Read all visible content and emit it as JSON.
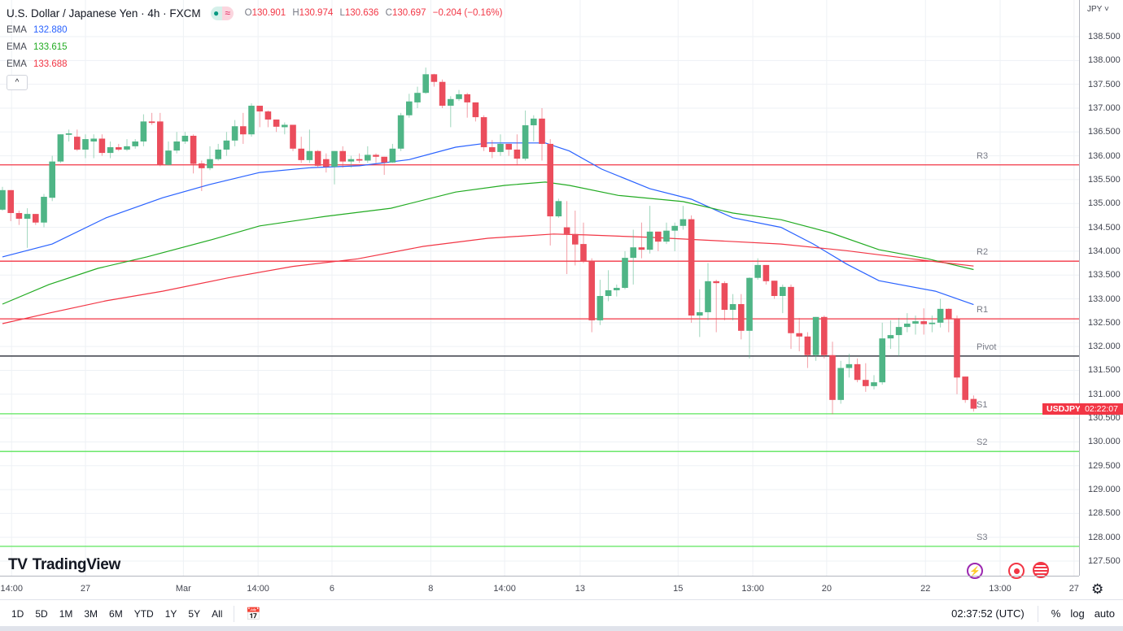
{
  "header": {
    "title": "U.S. Dollar / Japanese Yen · 4h · FXCM",
    "ohlc": {
      "o_label": "O",
      "o": "130.901",
      "h_label": "H",
      "h": "130.974",
      "l_label": "L",
      "l": "130.636",
      "c_label": "C",
      "c": "130.697",
      "change": "−0.204 (−0.16%)"
    },
    "emas": [
      {
        "label": "EMA",
        "value": "132.880",
        "color": "#2962ff"
      },
      {
        "label": "EMA",
        "value": "133.615",
        "color": "#22ab22"
      },
      {
        "label": "EMA",
        "value": "133.688",
        "color": "#f23645"
      }
    ],
    "collapse_icon": "chevron-up-icon"
  },
  "currency_label": "JPY ˅",
  "logo_text": "TradingView",
  "price_tag": {
    "symbol": "USDJPY",
    "countdown": "02:22:07"
  },
  "bottom": {
    "ranges": [
      "1D",
      "5D",
      "1M",
      "3M",
      "6M",
      "YTD",
      "1Y",
      "5Y",
      "All"
    ],
    "time": "02:37:52 (UTC)",
    "percent": "%",
    "log": "log",
    "auto": "auto"
  },
  "colors": {
    "up": "#4fb586",
    "down": "#eb4d5c",
    "resistance": "#f23645",
    "pivot": "#131722",
    "support": "#5ce65c",
    "grid": "#eef1f5"
  },
  "chart_data": {
    "type": "candlestick",
    "title": "U.S. Dollar / Japanese Yen · 4h · FXCM",
    "ylim": [
      127.2,
      138.75
    ],
    "y_ticks": [
      "138.500",
      "138.000",
      "137.500",
      "137.000",
      "136.500",
      "136.000",
      "135.500",
      "135.000",
      "134.500",
      "134.000",
      "133.500",
      "133.000",
      "132.500",
      "132.000",
      "131.500",
      "131.000",
      "130.500",
      "130.000",
      "129.500",
      "129.000",
      "128.500",
      "128.000",
      "127.500"
    ],
    "x_ticks": [
      {
        "i": 1.1,
        "label": "14:00"
      },
      {
        "i": 10,
        "label": "27"
      },
      {
        "i": 21.8,
        "label": "Mar"
      },
      {
        "i": 30.8,
        "label": "14:00"
      },
      {
        "i": 39.7,
        "label": "6"
      },
      {
        "i": 51.6,
        "label": "8"
      },
      {
        "i": 60.5,
        "label": "14:00"
      },
      {
        "i": 69.6,
        "label": "13"
      },
      {
        "i": 81.4,
        "label": "15"
      },
      {
        "i": 90.4,
        "label": "13:00"
      },
      {
        "i": 99.3,
        "label": "20"
      },
      {
        "i": 111.2,
        "label": "22"
      },
      {
        "i": 120.2,
        "label": "13:00"
      },
      {
        "i": 129.1,
        "label": "27"
      }
    ],
    "levels": [
      {
        "name": "R3",
        "value": 135.81,
        "kind": "resistance"
      },
      {
        "name": "R2",
        "value": 133.79,
        "kind": "resistance"
      },
      {
        "name": "R1",
        "value": 132.58,
        "kind": "resistance"
      },
      {
        "name": "Pivot",
        "value": 131.8,
        "kind": "pivot"
      },
      {
        "name": "S1",
        "value": 130.59,
        "kind": "support"
      },
      {
        "name": "S2",
        "value": 129.8,
        "kind": "support"
      },
      {
        "name": "S3",
        "value": 127.81,
        "kind": "support"
      }
    ],
    "ohlc": [
      [
        134.87,
        135.35,
        134.85,
        135.28
      ],
      [
        135.28,
        135.28,
        134.63,
        134.8
      ],
      [
        134.8,
        134.85,
        134.55,
        134.68
      ],
      [
        134.68,
        134.9,
        134.07,
        134.78
      ],
      [
        134.78,
        134.78,
        134.55,
        134.6
      ],
      [
        134.6,
        135.2,
        134.5,
        135.14
      ],
      [
        135.12,
        136.0,
        135.05,
        135.88
      ],
      [
        135.88,
        136.45,
        135.85,
        136.45
      ],
      [
        136.44,
        136.55,
        136.3,
        136.47
      ],
      [
        136.4,
        136.55,
        136.1,
        136.13
      ],
      [
        136.13,
        136.45,
        135.95,
        136.35
      ],
      [
        136.3,
        136.45,
        135.95,
        136.36
      ],
      [
        136.36,
        136.45,
        136.0,
        136.06
      ],
      [
        136.06,
        136.3,
        135.95,
        136.18
      ],
      [
        136.18,
        136.25,
        136.1,
        136.13
      ],
      [
        136.13,
        136.35,
        136.1,
        136.2
      ],
      [
        136.2,
        136.35,
        136.15,
        136.3
      ],
      [
        136.3,
        136.87,
        136.2,
        136.72
      ],
      [
        136.72,
        136.9,
        136.65,
        136.69
      ],
      [
        136.72,
        136.9,
        135.78,
        135.81
      ],
      [
        135.81,
        136.3,
        135.8,
        136.11
      ],
      [
        136.11,
        136.5,
        136.05,
        136.3
      ],
      [
        136.3,
        136.5,
        136.25,
        136.42
      ],
      [
        136.42,
        136.45,
        135.63,
        135.83
      ],
      [
        135.84,
        135.9,
        135.26,
        135.74
      ],
      [
        135.74,
        136.2,
        135.7,
        135.93
      ],
      [
        135.93,
        136.25,
        135.9,
        136.13
      ],
      [
        136.13,
        136.5,
        136.0,
        136.32
      ],
      [
        136.32,
        136.75,
        136.2,
        136.62
      ],
      [
        136.62,
        136.9,
        136.25,
        136.45
      ],
      [
        136.45,
        137.1,
        136.4,
        137.05
      ],
      [
        137.05,
        137.05,
        136.6,
        136.93
      ],
      [
        136.93,
        136.95,
        136.6,
        136.76
      ],
      [
        136.76,
        136.76,
        136.5,
        136.61
      ],
      [
        136.6,
        136.7,
        136.45,
        136.65
      ],
      [
        136.65,
        136.65,
        136.1,
        136.15
      ],
      [
        136.15,
        136.4,
        135.85,
        135.91
      ],
      [
        135.91,
        136.55,
        135.85,
        136.1
      ],
      [
        136.1,
        136.12,
        135.75,
        135.79
      ],
      [
        135.93,
        136.05,
        135.65,
        135.77
      ],
      [
        135.77,
        136.1,
        135.4,
        136.1
      ],
      [
        136.1,
        136.2,
        135.75,
        135.88
      ],
      [
        135.88,
        136.0,
        135.75,
        135.93
      ],
      [
        135.93,
        136.05,
        135.85,
        135.9
      ],
      [
        135.9,
        136.2,
        135.85,
        136.02
      ],
      [
        136.02,
        136.05,
        135.85,
        135.98
      ],
      [
        135.98,
        135.98,
        135.6,
        135.86
      ],
      [
        135.86,
        136.25,
        135.85,
        136.15
      ],
      [
        136.15,
        136.9,
        136.1,
        136.85
      ],
      [
        136.85,
        137.3,
        136.8,
        137.14
      ],
      [
        137.12,
        137.45,
        137.0,
        137.32
      ],
      [
        137.32,
        137.85,
        137.3,
        137.71
      ],
      [
        137.71,
        137.72,
        137.45,
        137.55
      ],
      [
        137.55,
        137.6,
        137.0,
        137.05
      ],
      [
        137.05,
        137.25,
        136.6,
        137.19
      ],
      [
        137.19,
        137.38,
        137.15,
        137.29
      ],
      [
        137.29,
        137.32,
        136.8,
        137.12
      ],
      [
        137.12,
        137.12,
        136.72,
        136.81
      ],
      [
        136.81,
        136.85,
        136.1,
        136.18
      ],
      [
        136.18,
        136.33,
        135.95,
        136.08
      ],
      [
        136.08,
        136.45,
        136.0,
        136.25
      ],
      [
        136.25,
        136.25,
        136.0,
        136.13
      ],
      [
        136.13,
        136.45,
        135.8,
        135.94
      ],
      [
        135.94,
        136.95,
        135.9,
        136.64
      ],
      [
        136.64,
        136.85,
        136.3,
        136.78
      ],
      [
        136.78,
        137.0,
        135.9,
        136.25
      ],
      [
        136.25,
        136.35,
        134.12,
        134.73
      ],
      [
        134.73,
        135.1,
        134.7,
        135.05
      ],
      [
        134.5,
        135.05,
        133.52,
        134.36
      ],
      [
        134.36,
        134.85,
        133.7,
        134.14
      ],
      [
        134.15,
        134.6,
        133.75,
        133.79
      ],
      [
        133.79,
        133.85,
        132.3,
        132.55
      ],
      [
        132.55,
        133.4,
        132.45,
        133.06
      ],
      [
        133.06,
        133.6,
        132.95,
        133.18
      ],
      [
        133.18,
        133.3,
        133.05,
        133.23
      ],
      [
        133.23,
        134.0,
        133.2,
        133.86
      ],
      [
        133.86,
        134.45,
        133.3,
        134.08
      ],
      [
        134.08,
        134.6,
        133.85,
        134.03
      ],
      [
        134.03,
        134.95,
        133.95,
        134.41
      ],
      [
        134.41,
        134.41,
        134.0,
        134.2
      ],
      [
        134.2,
        134.6,
        134.15,
        134.43
      ],
      [
        134.43,
        134.6,
        134.0,
        134.53
      ],
      [
        134.53,
        134.95,
        134.45,
        134.67
      ],
      [
        134.67,
        134.75,
        132.5,
        132.65
      ],
      [
        132.65,
        133.2,
        132.2,
        132.72
      ],
      [
        132.72,
        133.75,
        132.55,
        133.37
      ],
      [
        133.37,
        133.4,
        132.3,
        133.33
      ],
      [
        133.33,
        133.37,
        132.55,
        132.77
      ],
      [
        132.77,
        133.1,
        132.55,
        132.89
      ],
      [
        132.89,
        133.1,
        132.15,
        132.33
      ],
      [
        132.33,
        133.45,
        131.75,
        133.44
      ],
      [
        133.44,
        133.85,
        133.4,
        133.71
      ],
      [
        133.71,
        133.71,
        133.3,
        133.37
      ],
      [
        133.38,
        133.38,
        133.0,
        133.06
      ],
      [
        133.06,
        133.3,
        132.7,
        133.25
      ],
      [
        133.25,
        133.3,
        131.95,
        132.28
      ],
      [
        132.28,
        132.6,
        131.9,
        132.21
      ],
      [
        132.21,
        132.3,
        131.55,
        131.82
      ],
      [
        131.82,
        132.62,
        131.7,
        132.62
      ],
      [
        132.62,
        132.65,
        131.75,
        131.82
      ],
      [
        131.82,
        132.1,
        130.58,
        130.88
      ],
      [
        130.88,
        131.7,
        130.8,
        131.55
      ],
      [
        131.55,
        131.85,
        131.35,
        131.63
      ],
      [
        131.63,
        131.75,
        131.25,
        131.3
      ],
      [
        131.3,
        131.65,
        131.05,
        131.17
      ],
      [
        131.17,
        131.4,
        131.1,
        131.25
      ],
      [
        131.25,
        132.5,
        131.2,
        132.17
      ],
      [
        132.17,
        132.55,
        131.95,
        132.24
      ],
      [
        132.24,
        132.6,
        131.8,
        132.41
      ],
      [
        132.41,
        132.7,
        132.3,
        132.48
      ],
      [
        132.48,
        132.65,
        132.25,
        132.53
      ],
      [
        132.53,
        132.8,
        132.25,
        132.47
      ],
      [
        132.47,
        132.65,
        132.3,
        132.5
      ],
      [
        132.5,
        133.0,
        132.4,
        132.79
      ],
      [
        132.79,
        132.8,
        132.3,
        132.58
      ],
      [
        132.58,
        132.65,
        131.0,
        131.35
      ],
      [
        131.37,
        131.37,
        130.82,
        130.88
      ],
      [
        130.901,
        130.974,
        130.636,
        130.697
      ]
    ],
    "series": [
      {
        "name": "EMA",
        "color": "#2962ff",
        "points": [
          [
            0,
            133.88
          ],
          [
            6,
            134.15
          ],
          [
            12.5,
            134.7
          ],
          [
            19.3,
            135.12
          ],
          [
            25,
            135.4
          ],
          [
            31,
            135.65
          ],
          [
            37,
            135.75
          ],
          [
            43,
            135.79
          ],
          [
            49,
            135.92
          ],
          [
            54.6,
            136.18
          ],
          [
            58.5,
            136.27
          ],
          [
            65.4,
            136.27
          ],
          [
            68.3,
            136.1
          ],
          [
            72.2,
            135.72
          ],
          [
            78,
            135.31
          ],
          [
            83,
            135.09
          ],
          [
            88,
            134.7
          ],
          [
            93.8,
            134.5
          ],
          [
            97.7,
            134.15
          ],
          [
            101.7,
            133.73
          ],
          [
            105.6,
            133.38
          ],
          [
            112.4,
            133.16
          ],
          [
            117,
            132.88
          ]
        ]
      },
      {
        "name": "EMA",
        "color": "#22ab22",
        "points": [
          [
            0,
            132.89
          ],
          [
            5.6,
            133.3
          ],
          [
            11.5,
            133.64
          ],
          [
            17.4,
            133.88
          ],
          [
            25.2,
            134.24
          ],
          [
            31,
            134.53
          ],
          [
            38.9,
            134.73
          ],
          [
            46.8,
            134.9
          ],
          [
            54.6,
            135.24
          ],
          [
            60.5,
            135.38
          ],
          [
            65.4,
            135.45
          ],
          [
            68.3,
            135.38
          ],
          [
            74.2,
            135.17
          ],
          [
            82,
            135.04
          ],
          [
            88,
            134.8
          ],
          [
            93.8,
            134.66
          ],
          [
            99.7,
            134.39
          ],
          [
            105.6,
            134.03
          ],
          [
            111.5,
            133.84
          ],
          [
            117,
            133.615
          ]
        ]
      },
      {
        "name": "EMA",
        "color": "#f23645",
        "points": [
          [
            0,
            132.48
          ],
          [
            5.6,
            132.7
          ],
          [
            12.5,
            132.96
          ],
          [
            19.3,
            133.16
          ],
          [
            27.2,
            133.44
          ],
          [
            35,
            133.68
          ],
          [
            42.8,
            133.84
          ],
          [
            50.7,
            134.1
          ],
          [
            58.5,
            134.27
          ],
          [
            66.4,
            134.36
          ],
          [
            70.3,
            134.34
          ],
          [
            78.1,
            134.29
          ],
          [
            86,
            134.22
          ],
          [
            93.8,
            134.15
          ],
          [
            101.7,
            134.01
          ],
          [
            109.5,
            133.84
          ],
          [
            117,
            133.688
          ]
        ]
      }
    ]
  }
}
